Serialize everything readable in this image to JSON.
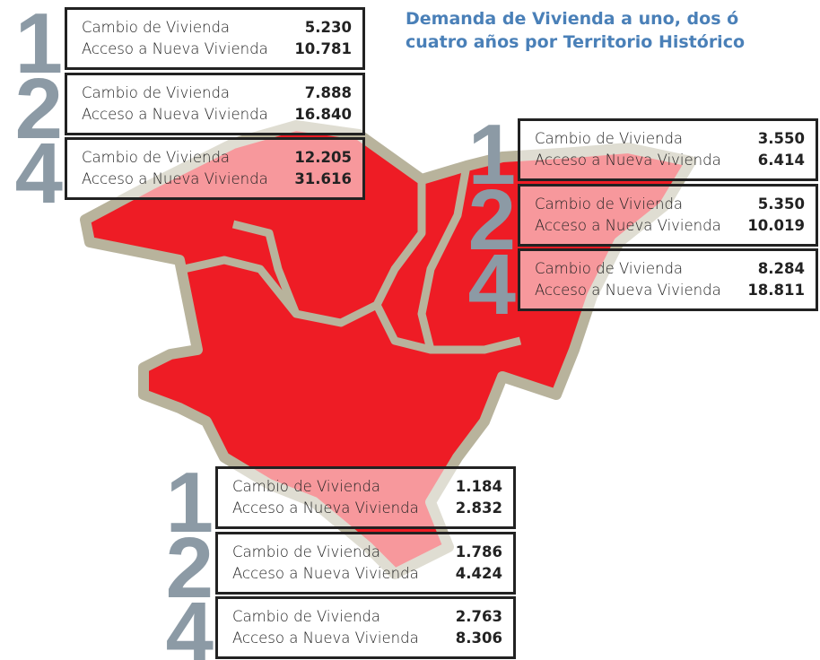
{
  "title_lines": [
    "Demanda de Vivienda a uno, dos ó",
    "cuatro años por Territorio Histórico"
  ],
  "territories": [
    {
      "periods": [
        {
          "period": "1",
          "rows": [
            {
              "label": "Cambio de Vivienda",
              "value": "5.230"
            },
            {
              "label": "Acceso a Nueva Vivienda",
              "value": "10.781"
            }
          ]
        },
        {
          "period": "2",
          "rows": [
            {
              "label": "Cambio de Vivienda",
              "value": "7.888"
            },
            {
              "label": "Acceso a Nueva Vivienda",
              "value": "16.840"
            }
          ]
        },
        {
          "period": "4",
          "rows": [
            {
              "label": "Cambio de Vivienda",
              "value": "12.205"
            },
            {
              "label": "Acceso a Nueva Vivienda",
              "value": "31.616"
            }
          ]
        }
      ]
    },
    {
      "periods": [
        {
          "period": "1",
          "rows": [
            {
              "label": "Cambio de Vivienda",
              "value": "3.550"
            },
            {
              "label": "Acceso a Nueva Vivienda",
              "value": "6.414"
            }
          ]
        },
        {
          "period": "2",
          "rows": [
            {
              "label": "Cambio de Vivienda",
              "value": "5.350"
            },
            {
              "label": "Acceso a Nueva Vivienda",
              "value": "10.019"
            }
          ]
        },
        {
          "period": "4",
          "rows": [
            {
              "label": "Cambio de Vivienda",
              "value": "8.284"
            },
            {
              "label": "Acceso a Nueva Vivienda",
              "value": "18.811"
            }
          ]
        }
      ]
    },
    {
      "periods": [
        {
          "period": "1",
          "rows": [
            {
              "label": "Cambio de Vivienda",
              "value": "1.184"
            },
            {
              "label": "Acceso a Nueva Vivienda",
              "value": "2.832"
            }
          ]
        },
        {
          "period": "2",
          "rows": [
            {
              "label": "Cambio de Vivienda",
              "value": "1.786"
            },
            {
              "label": "Acceso a Nueva Vivienda",
              "value": "4.424"
            }
          ]
        },
        {
          "period": "4",
          "rows": [
            {
              "label": "Cambio de Vivienda",
              "value": "2.763"
            },
            {
              "label": "Acceso a Nueva Vivienda",
              "value": "8.306"
            }
          ]
        }
      ]
    }
  ]
}
